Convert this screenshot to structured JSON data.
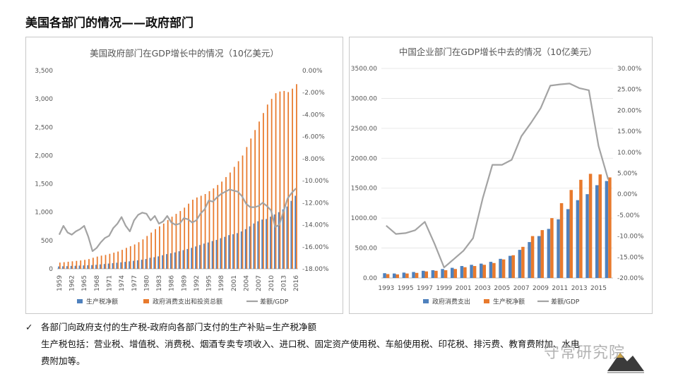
{
  "page": {
    "title": "美国各部门的情况——政府部门"
  },
  "colors": {
    "blue": "#4f81bd",
    "orange": "#e87a2d",
    "gray": "#a3a3a3",
    "grid": "#e3e3e3"
  },
  "chart_data": [
    {
      "id": "us",
      "type": "bar+line",
      "title": "美国政府部门在GDP增长中的情况（10亿美元）",
      "y_left_ticks": [
        "0",
        "500",
        "1,000",
        "1,500",
        "2,000",
        "2,500",
        "3,000",
        "3,500"
      ],
      "y_right_ticks": [
        "0.00%",
        "-2.00%",
        "-4.00%",
        "-6.00%",
        "-8.00%",
        "-10.00%",
        "-12.00%",
        "-14.00%",
        "-16.00%",
        "-18.00%"
      ],
      "ylim_left": [
        0,
        3500
      ],
      "ylim_right": [
        -18,
        0
      ],
      "x_tick_labels": [
        "1959",
        "1962",
        "1965",
        "1968",
        "1971",
        "1974",
        "1977",
        "1980",
        "1983",
        "1986",
        "1989",
        "1992",
        "1995",
        "1998",
        "2001",
        "2004",
        "2007",
        "2010",
        "2013",
        "2016"
      ],
      "years": [
        1959,
        1960,
        1961,
        1962,
        1963,
        1964,
        1965,
        1966,
        1967,
        1968,
        1969,
        1970,
        1971,
        1972,
        1973,
        1974,
        1975,
        1976,
        1977,
        1978,
        1979,
        1980,
        1981,
        1982,
        1983,
        1984,
        1985,
        1986,
        1987,
        1988,
        1989,
        1990,
        1991,
        1992,
        1993,
        1994,
        1995,
        1996,
        1997,
        1998,
        1999,
        2000,
        2001,
        2002,
        2003,
        2004,
        2005,
        2006,
        2007,
        2008,
        2009,
        2010,
        2011,
        2012,
        2013,
        2014,
        2015,
        2016
      ],
      "series": [
        {
          "name": "生产税净额",
          "kind": "bar",
          "axis": "left",
          "color": "#4f81bd",
          "values": [
            42,
            45,
            47,
            51,
            54,
            57,
            60,
            63,
            66,
            71,
            78,
            85,
            93,
            100,
            108,
            115,
            123,
            132,
            141,
            150,
            160,
            173,
            195,
            205,
            220,
            240,
            260,
            275,
            290,
            310,
            330,
            350,
            370,
            395,
            420,
            445,
            465,
            490,
            510,
            540,
            565,
            595,
            610,
            630,
            660,
            700,
            750,
            800,
            840,
            870,
            880,
            920,
            960,
            1000,
            1050,
            1100,
            1200,
            1290
          ]
        },
        {
          "name": "政府消费支出和投资总额",
          "kind": "bar",
          "axis": "left",
          "color": "#e87a2d",
          "values": [
            110,
            117,
            125,
            133,
            140,
            148,
            158,
            172,
            195,
            216,
            233,
            245,
            265,
            285,
            305,
            335,
            370,
            400,
            430,
            470,
            520,
            580,
            640,
            700,
            750,
            800,
            860,
            920,
            970,
            1020,
            1080,
            1150,
            1220,
            1260,
            1290,
            1320,
            1370,
            1420,
            1480,
            1540,
            1620,
            1700,
            1800,
            1900,
            2000,
            2150,
            2300,
            2450,
            2600,
            2750,
            2900,
            3000,
            3100,
            3130,
            3140,
            3120,
            3180,
            3260
          ]
        },
        {
          "name": "差额/GDP",
          "kind": "line",
          "axis": "right",
          "color": "#a3a3a3",
          "values": [
            -14.9,
            -14.1,
            -14.7,
            -14.9,
            -14.6,
            -14.4,
            -14.1,
            -15.1,
            -16.4,
            -16.1,
            -15.6,
            -15.2,
            -15.0,
            -14.3,
            -13.9,
            -13.3,
            -14.1,
            -14.6,
            -13.6,
            -13.1,
            -12.9,
            -13.0,
            -13.6,
            -13.2,
            -13.9,
            -13.7,
            -13.2,
            -13.8,
            -14.0,
            -13.9,
            -13.4,
            -13.5,
            -13.8,
            -13.6,
            -13.0,
            -12.6,
            -11.8,
            -11.9,
            -11.5,
            -11.2,
            -11.0,
            -10.8,
            -10.9,
            -11.0,
            -11.4,
            -12.1,
            -12.4,
            -12.4,
            -12.3,
            -12.0,
            -12.3,
            -12.7,
            -14.2,
            -14.0,
            -12.8,
            -11.6,
            -11.1,
            -10.7
          ]
        }
      ]
    },
    {
      "id": "cn",
      "type": "bar+line",
      "title": "中国企业部门在GDP增长中去的情况（10亿美元）",
      "y_left_ticks": [
        "0.00",
        "500.00",
        "1000.00",
        "1500.00",
        "2000.00",
        "2500.00",
        "3000.00",
        "3500.00"
      ],
      "y_right_ticks": [
        "30.00%",
        "25.00%",
        "20.00%",
        "15.00%",
        "10.00%",
        "5.00%",
        "0.00%",
        "-5.00%",
        "-10.00%",
        "-15.00%",
        "-20.00%"
      ],
      "ylim_left": [
        0,
        3500
      ],
      "ylim_right": [
        -20,
        30
      ],
      "x_tick_labels": [
        "1993",
        "1995",
        "1997",
        "1999",
        "2001",
        "2003",
        "2005",
        "2007",
        "2009",
        "2011",
        "2013",
        "2015"
      ],
      "years": [
        1993,
        1994,
        1995,
        1996,
        1997,
        1998,
        1999,
        2000,
        2001,
        2002,
        2003,
        2004,
        2005,
        2006,
        2007,
        2008,
        2009,
        2010,
        2011,
        2012,
        2013,
        2014,
        2015,
        2016
      ],
      "series": [
        {
          "name": "政府消费支出",
          "kind": "bar",
          "axis": "left",
          "color": "#4f81bd",
          "values": [
            80,
            75,
            90,
            100,
            120,
            130,
            150,
            170,
            200,
            220,
            240,
            270,
            320,
            370,
            470,
            600,
            700,
            820,
            980,
            1150,
            1300,
            1400,
            1550,
            1620
          ]
        },
        {
          "name": "生产税净额",
          "kind": "bar",
          "axis": "left",
          "color": "#e87a2d",
          "values": [
            65,
            60,
            75,
            85,
            110,
            120,
            130,
            150,
            180,
            200,
            220,
            250,
            310,
            380,
            520,
            700,
            800,
            1000,
            1250,
            1470,
            1640,
            1740,
            1730,
            1680
          ]
        },
        {
          "name": "差额/GDP",
          "kind": "line",
          "axis": "right",
          "color": "#a3a3a3",
          "values": [
            -7.5,
            -9.5,
            -9.3,
            -8.6,
            -6.6,
            -11.8,
            -17.5,
            -15.5,
            -13.5,
            -10.5,
            -1.0,
            7.0,
            7.0,
            8.2,
            13.8,
            17.0,
            20.5,
            25.9,
            26.2,
            26.4,
            25.3,
            24.8,
            11.5,
            3.5
          ]
        }
      ]
    }
  ],
  "notes": {
    "check_mark": "✓",
    "line1": "各部门向政府支付的生产税-政府向各部门支付的生产补贴=生产税净额",
    "line2": "生产税包括：营业税、增值税、消费税、烟酒专卖专项收入、进口税、固定资产使用税、车船使用税、印花税、排污费、教育费附加、水电",
    "line3": "费附加等。"
  },
  "watermark": {
    "text": "守常研究院"
  },
  "logo": {
    "icon": "mountain-logo-icon"
  }
}
